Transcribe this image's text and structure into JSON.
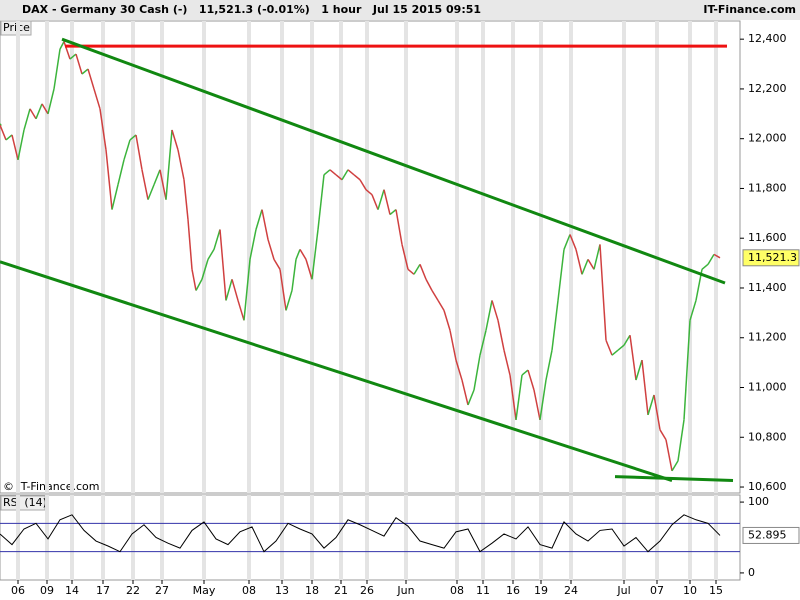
{
  "header": {
    "title": "DAX - Germany 30 Cash (-)   11,521.3 (-0.01%)   1 hour   Jul 15 2015 09:51",
    "source": "IT-Finance.com",
    "watermark": "© IT-Finance.com"
  },
  "chart_data": [
    {
      "type": "line",
      "title": "Price",
      "up_color": "#3cb43c",
      "down_color": "#d04040",
      "xlim": [
        0,
        740
      ],
      "ylim": [
        10576,
        12473
      ],
      "yticks": [
        {
          "value": 10600,
          "label": "10,600"
        },
        {
          "value": 10800,
          "label": "10,800"
        },
        {
          "value": 11000,
          "label": "11,000"
        },
        {
          "value": 11200,
          "label": "11,200"
        },
        {
          "value": 11400,
          "label": "11,400"
        },
        {
          "value": 11600,
          "label": "11,600"
        },
        {
          "value": 11800,
          "label": "11,800"
        },
        {
          "value": 12000,
          "label": "12,000"
        },
        {
          "value": 12200,
          "label": "12,200"
        },
        {
          "value": 12400,
          "label": "12,400"
        }
      ],
      "x": [
        0,
        6,
        12,
        18,
        24,
        30,
        36,
        42,
        48,
        54,
        60,
        64,
        70,
        76,
        82,
        88,
        94,
        100,
        106,
        112,
        118,
        124,
        130,
        136,
        142,
        148,
        154,
        160,
        166,
        172,
        178,
        184,
        188,
        192,
        196,
        202,
        208,
        214,
        220,
        226,
        232,
        238,
        244,
        250,
        256,
        262,
        268,
        274,
        280,
        286,
        292,
        296,
        300,
        306,
        312,
        318,
        324,
        330,
        336,
        342,
        348,
        354,
        360,
        366,
        372,
        378,
        384,
        390,
        396,
        402,
        408,
        414,
        420,
        426,
        432,
        438,
        444,
        450,
        456,
        462,
        468,
        474,
        480,
        486,
        492,
        498,
        504,
        510,
        516,
        522,
        528,
        534,
        540,
        546,
        552,
        558,
        564,
        570,
        576,
        582,
        588,
        594,
        600,
        606,
        612,
        618,
        624,
        630,
        636,
        642,
        648,
        654,
        660,
        666,
        672,
        678,
        684,
        690,
        696,
        702,
        708,
        714,
        720
      ],
      "series": [
        {
          "values": [
            12055,
            11995,
            12015,
            11915,
            12035,
            12120,
            12080,
            12140,
            12100,
            12200,
            12360,
            12390,
            12320,
            12340,
            12260,
            12280,
            12200,
            12120,
            11955,
            11715,
            11815,
            11915,
            11995,
            12015,
            11875,
            11755,
            11815,
            11875,
            11755,
            12035,
            11955,
            11835,
            11675,
            11475,
            11390,
            11435,
            11515,
            11555,
            11635,
            11350,
            11435,
            11350,
            11270,
            11515,
            11635,
            11715,
            11595,
            11515,
            11475,
            11310,
            11390,
            11515,
            11555,
            11515,
            11435,
            11635,
            11855,
            11875,
            11855,
            11835,
            11875,
            11855,
            11835,
            11795,
            11775,
            11715,
            11795,
            11695,
            11715,
            11575,
            11475,
            11455,
            11495,
            11435,
            11390,
            11350,
            11310,
            11230,
            11110,
            11030,
            10930,
            10990,
            11130,
            11230,
            11350,
            11270,
            11150,
            11050,
            10870,
            11050,
            11070,
            10990,
            10870,
            11030,
            11150,
            11350,
            11555,
            11615,
            11555,
            11455,
            11515,
            11475,
            11575,
            11190,
            11130,
            11150,
            11170,
            11210,
            11030,
            11110,
            10890,
            10970,
            10830,
            10790,
            10665,
            10705,
            10870,
            11270,
            11350,
            11475,
            11495,
            11535,
            11521.3
          ],
          "last_label": "11,521.3"
        }
      ],
      "lines": [
        {
          "color": "#ee1111",
          "points": [
            [
              65,
              12372
            ],
            [
              727,
              12372
            ]
          ]
        },
        {
          "color": "#118811",
          "points": [
            [
              62,
              12400
            ],
            [
              725,
              11420
            ]
          ]
        },
        {
          "color": "#118811",
          "points": [
            [
              0,
              11505
            ],
            [
              672,
              10626
            ]
          ]
        },
        {
          "color": "#118811",
          "points": [
            [
              615,
              10642
            ],
            [
              733,
              10626
            ]
          ]
        }
      ]
    },
    {
      "type": "line",
      "title": "RSI (14)",
      "color": "#000000",
      "level_color": "#3333aa",
      "xlim": [
        0,
        740
      ],
      "ylim": [
        -10,
        110
      ],
      "yticks": [
        0,
        100
      ],
      "levels": [
        30,
        70
      ],
      "xticks": [
        {
          "value": 18,
          "label": "06"
        },
        {
          "value": 47,
          "label": "09"
        },
        {
          "value": 72,
          "label": "14"
        },
        {
          "value": 103,
          "label": "17"
        },
        {
          "value": 133,
          "label": "22"
        },
        {
          "value": 162,
          "label": "27"
        },
        {
          "value": 204,
          "label": "May"
        },
        {
          "value": 249,
          "label": "08"
        },
        {
          "value": 282,
          "label": "13"
        },
        {
          "value": 312,
          "label": "18"
        },
        {
          "value": 341,
          "label": "21"
        },
        {
          "value": 367,
          "label": "26"
        },
        {
          "value": 406,
          "label": "Jun"
        },
        {
          "value": 457,
          "label": "08"
        },
        {
          "value": 483,
          "label": "11"
        },
        {
          "value": 513,
          "label": "16"
        },
        {
          "value": 541,
          "label": "19"
        },
        {
          "value": 571,
          "label": "24"
        },
        {
          "value": 624,
          "label": "Jul"
        },
        {
          "value": 657,
          "label": "07"
        },
        {
          "value": 690,
          "label": "10"
        },
        {
          "value": 716,
          "label": "15"
        }
      ],
      "x": [
        0,
        12,
        24,
        36,
        48,
        60,
        72,
        84,
        96,
        108,
        120,
        132,
        144,
        156,
        168,
        180,
        192,
        204,
        216,
        228,
        240,
        252,
        264,
        276,
        288,
        300,
        312,
        324,
        336,
        348,
        360,
        372,
        384,
        396,
        408,
        420,
        432,
        444,
        456,
        468,
        480,
        492,
        504,
        516,
        528,
        540,
        552,
        564,
        576,
        588,
        600,
        612,
        624,
        636,
        648,
        660,
        672,
        684,
        696,
        708,
        720
      ],
      "series": [
        {
          "values": [
            55,
            40,
            62,
            70,
            48,
            75,
            82,
            60,
            45,
            38,
            30,
            55,
            68,
            50,
            42,
            35,
            60,
            72,
            48,
            40,
            58,
            65,
            30,
            45,
            70,
            62,
            55,
            35,
            50,
            75,
            68,
            60,
            52,
            78,
            66,
            45,
            40,
            35,
            58,
            62,
            30,
            42,
            55,
            48,
            65,
            40,
            35,
            72,
            55,
            45,
            60,
            62,
            38,
            50,
            30,
            45,
            68,
            82,
            75,
            70,
            52.895
          ]
        }
      ]
    }
  ]
}
